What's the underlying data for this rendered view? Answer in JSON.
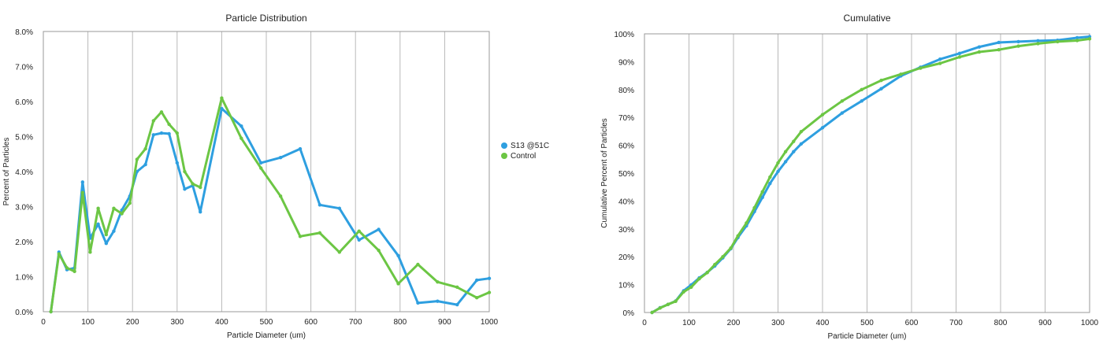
{
  "chart_data": [
    {
      "type": "line",
      "title": "Particle Distribution",
      "xlabel": "Particle Diameter (um)",
      "ylabel": "Percent of Particles",
      "xlim": [
        0,
        1000
      ],
      "ylim": [
        0,
        8
      ],
      "x_ticks": [
        0,
        100,
        200,
        300,
        400,
        500,
        600,
        700,
        800,
        900,
        1000
      ],
      "x_tick_labels": [
        "0",
        "100",
        "200",
        "300",
        "400",
        "500",
        "600",
        "700",
        "800",
        "900",
        "1000"
      ],
      "y_ticks": [
        0,
        1,
        2,
        3,
        4,
        5,
        6,
        7,
        8
      ],
      "y_tick_labels": [
        "0.0%",
        "1.0%",
        "2.0%",
        "3.0%",
        "4.0%",
        "5.0%",
        "6.0%",
        "7.0%",
        "8.0%"
      ],
      "grid": "vertical",
      "legend": "right",
      "series": [
        {
          "name": "S13 @51C",
          "color": "#2e9fe0",
          "points": [
            [
              17,
              0.0
            ],
            [
              35,
              1.7
            ],
            [
              53,
              1.2
            ],
            [
              70,
              1.25
            ],
            [
              88,
              3.7
            ],
            [
              105,
              2.1
            ],
            [
              123,
              2.5
            ],
            [
              141,
              1.95
            ],
            [
              158,
              2.3
            ],
            [
              176,
              2.9
            ],
            [
              194,
              3.3
            ],
            [
              210,
              4.0
            ],
            [
              229,
              4.2
            ],
            [
              247,
              5.05
            ],
            [
              265,
              5.1
            ],
            [
              282,
              5.08
            ],
            [
              300,
              4.25
            ],
            [
              317,
              3.5
            ],
            [
              335,
              3.6
            ],
            [
              352,
              2.85
            ],
            [
              400,
              5.8
            ],
            [
              444,
              5.3
            ],
            [
              488,
              4.25
            ],
            [
              532,
              4.4
            ],
            [
              576,
              4.65
            ],
            [
              620,
              3.05
            ],
            [
              664,
              2.95
            ],
            [
              708,
              2.05
            ],
            [
              752,
              2.35
            ],
            [
              796,
              1.6
            ],
            [
              840,
              0.25
            ],
            [
              884,
              0.3
            ],
            [
              928,
              0.2
            ],
            [
              972,
              0.9
            ],
            [
              1000,
              0.95
            ]
          ]
        },
        {
          "name": "Control",
          "color": "#6cc644",
          "points": [
            [
              17,
              0.0
            ],
            [
              35,
              1.65
            ],
            [
              53,
              1.25
            ],
            [
              70,
              1.15
            ],
            [
              88,
              3.4
            ],
            [
              105,
              1.7
            ],
            [
              123,
              2.95
            ],
            [
              141,
              2.2
            ],
            [
              158,
              2.95
            ],
            [
              176,
              2.8
            ],
            [
              194,
              3.1
            ],
            [
              210,
              4.35
            ],
            [
              229,
              4.65
            ],
            [
              247,
              5.45
            ],
            [
              265,
              5.7
            ],
            [
              282,
              5.35
            ],
            [
              300,
              5.1
            ],
            [
              317,
              4.0
            ],
            [
              335,
              3.65
            ],
            [
              352,
              3.55
            ],
            [
              400,
              6.1
            ],
            [
              444,
              4.95
            ],
            [
              488,
              4.1
            ],
            [
              532,
              3.3
            ],
            [
              576,
              2.15
            ],
            [
              620,
              2.25
            ],
            [
              664,
              1.7
            ],
            [
              708,
              2.3
            ],
            [
              752,
              1.75
            ],
            [
              796,
              0.8
            ],
            [
              840,
              1.35
            ],
            [
              884,
              0.85
            ],
            [
              928,
              0.7
            ],
            [
              972,
              0.4
            ],
            [
              1000,
              0.55
            ]
          ]
        }
      ]
    },
    {
      "type": "line",
      "title": "Cumulative",
      "xlabel": "Particle Diameter (um)",
      "ylabel": "Cumulative Percent of Particles",
      "xlim": [
        0,
        1000
      ],
      "ylim": [
        0,
        100
      ],
      "x_ticks": [
        0,
        100,
        200,
        300,
        400,
        500,
        600,
        700,
        800,
        900,
        1000
      ],
      "x_tick_labels": [
        "0",
        "100",
        "200",
        "300",
        "400",
        "500",
        "600",
        "700",
        "800",
        "900",
        "1000"
      ],
      "y_ticks": [
        0,
        10,
        20,
        30,
        40,
        50,
        60,
        70,
        80,
        90,
        100
      ],
      "y_tick_labels": [
        "0%",
        "10%",
        "20%",
        "30%",
        "40%",
        "50%",
        "60%",
        "70%",
        "80%",
        "90%",
        "100%"
      ],
      "grid": "vertical",
      "legend": "none",
      "series": [
        {
          "name": "S13 @51C",
          "color": "#2e9fe0",
          "points": [
            [
              17,
              0.0
            ],
            [
              35,
              1.7
            ],
            [
              53,
              2.9
            ],
            [
              70,
              4.1
            ],
            [
              88,
              7.8
            ],
            [
              105,
              9.9
            ],
            [
              123,
              12.4
            ],
            [
              141,
              14.4
            ],
            [
              158,
              16.7
            ],
            [
              176,
              19.6
            ],
            [
              194,
              22.9
            ],
            [
              210,
              26.9
            ],
            [
              229,
              31.1
            ],
            [
              247,
              36.2
            ],
            [
              265,
              41.3
            ],
            [
              282,
              46.3
            ],
            [
              300,
              50.6
            ],
            [
              317,
              54.1
            ],
            [
              335,
              57.7
            ],
            [
              352,
              60.5
            ],
            [
              400,
              66.3
            ],
            [
              444,
              71.6
            ],
            [
              488,
              75.9
            ],
            [
              532,
              80.3
            ],
            [
              576,
              84.9
            ],
            [
              620,
              88.0
            ],
            [
              664,
              90.9
            ],
            [
              708,
              93.0
            ],
            [
              752,
              95.3
            ],
            [
              796,
              96.9
            ],
            [
              840,
              97.2
            ],
            [
              884,
              97.5
            ],
            [
              928,
              97.7
            ],
            [
              972,
              98.6
            ],
            [
              1000,
              99.0
            ]
          ]
        },
        {
          "name": "Control",
          "color": "#6cc644",
          "points": [
            [
              17,
              0.0
            ],
            [
              35,
              1.6
            ],
            [
              53,
              2.9
            ],
            [
              70,
              4.0
            ],
            [
              88,
              7.4
            ],
            [
              105,
              9.1
            ],
            [
              123,
              12.1
            ],
            [
              141,
              14.3
            ],
            [
              158,
              17.2
            ],
            [
              176,
              20.0
            ],
            [
              194,
              23.1
            ],
            [
              210,
              27.5
            ],
            [
              229,
              32.1
            ],
            [
              247,
              37.6
            ],
            [
              265,
              43.3
            ],
            [
              282,
              48.6
            ],
            [
              300,
              53.7
            ],
            [
              317,
              57.7
            ],
            [
              335,
              61.4
            ],
            [
              352,
              64.9
            ],
            [
              400,
              71.0
            ],
            [
              444,
              75.9
            ],
            [
              488,
              80.0
            ],
            [
              532,
              83.3
            ],
            [
              576,
              85.5
            ],
            [
              620,
              87.7
            ],
            [
              664,
              89.4
            ],
            [
              708,
              91.7
            ],
            [
              752,
              93.5
            ],
            [
              796,
              94.3
            ],
            [
              840,
              95.6
            ],
            [
              884,
              96.5
            ],
            [
              928,
              97.2
            ],
            [
              972,
              97.6
            ],
            [
              1000,
              98.2
            ]
          ]
        }
      ]
    }
  ]
}
